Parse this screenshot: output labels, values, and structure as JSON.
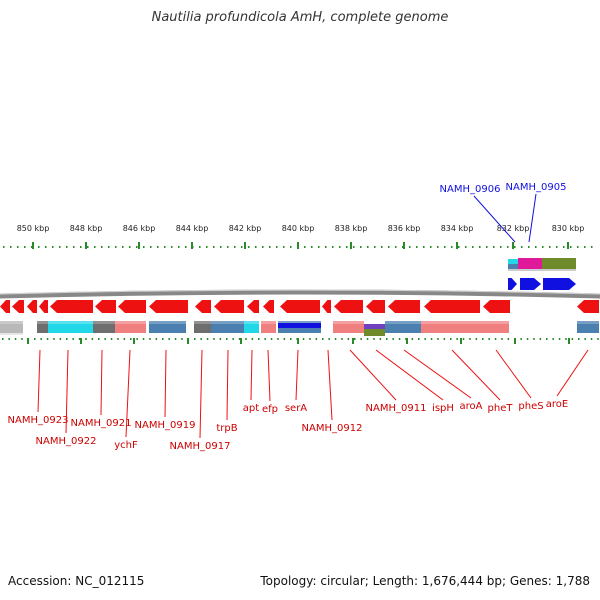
{
  "title": "Nautilia profundicola AmH, complete genome",
  "footer": {
    "accession": "Accession: NC_012115",
    "stats": "Topology: circular; Length: 1,676,444 bp; Genes: 1,788"
  },
  "colors": {
    "forward": "#1010e0",
    "reverse": "#ee1111",
    "backbone": "#888888",
    "tick": "#2a8a2a",
    "cds_cyan": "#22d8e8",
    "cds_pink": "#f08080",
    "cds_steel": "#4a7fb0",
    "cds_grey": "#6e6e6e"
  },
  "scale": [
    {
      "label": "850 kbp"
    },
    {
      "label": "848 kbp"
    },
    {
      "label": "846 kbp"
    },
    {
      "label": "844 kbp"
    },
    {
      "label": "842 kbp"
    },
    {
      "label": "840 kbp"
    },
    {
      "label": "838 kbp"
    },
    {
      "label": "836 kbp"
    },
    {
      "label": "834 kbp"
    },
    {
      "label": "832 kbp"
    },
    {
      "label": "830 kbp"
    }
  ],
  "forward_labels": [
    {
      "label": "NAMH_0906"
    },
    {
      "label": "NAMH_0905"
    }
  ],
  "reverse_labels": [
    {
      "label": "NAMH_0923"
    },
    {
      "label": "NAMH_0922"
    },
    {
      "label": "NAMH_0921"
    },
    {
      "label": "ychF"
    },
    {
      "label": "NAMH_0919"
    },
    {
      "label": "NAMH_0917"
    },
    {
      "label": "trpB"
    },
    {
      "label": "apt"
    },
    {
      "label": "efp"
    },
    {
      "label": "serA"
    },
    {
      "label": "NAMH_0912"
    },
    {
      "label": "NAMH_0911"
    },
    {
      "label": "ispH"
    },
    {
      "label": "aroA"
    },
    {
      "label": "pheT"
    },
    {
      "label": "pheS"
    },
    {
      "label": "aroE"
    }
  ]
}
